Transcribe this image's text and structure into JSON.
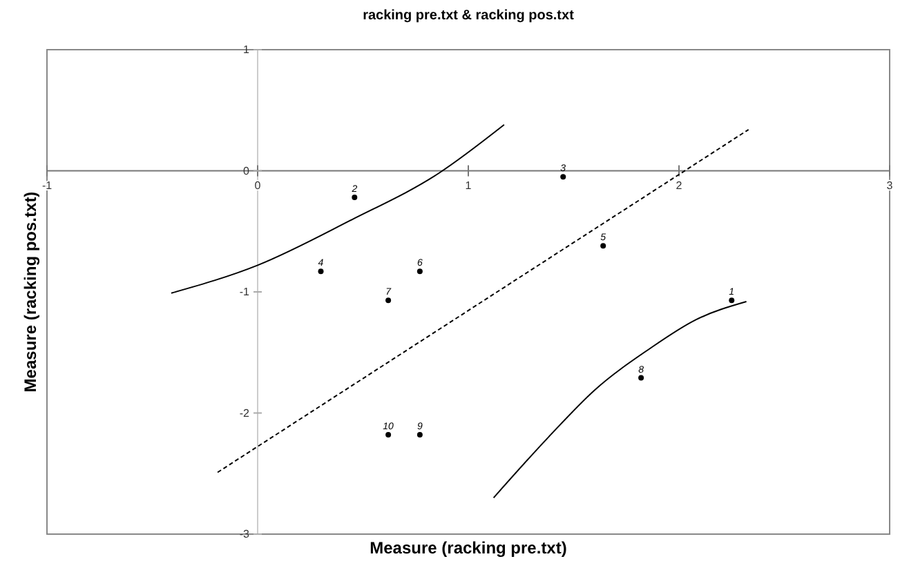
{
  "chart_data": {
    "type": "scatter",
    "title": "racking pre.txt & racking pos.txt",
    "xlabel": "Measure (racking pre.txt)",
    "ylabel": "Measure (racking pos.txt)",
    "xlim": [
      -1,
      3
    ],
    "ylim": [
      -3,
      1
    ],
    "xticks": [
      -1,
      0,
      1,
      2,
      3
    ],
    "yticks": [
      -3,
      -2,
      -1,
      0,
      1
    ],
    "grid": false,
    "annotations": [
      {
        "text": "1",
        "x": 2.25,
        "y": -1.07
      },
      {
        "text": "2",
        "x": 0.46,
        "y": -0.22
      },
      {
        "text": "3",
        "x": 1.45,
        "y": -0.05
      },
      {
        "text": "4",
        "x": 0.3,
        "y": -0.83
      },
      {
        "text": "5",
        "x": 1.64,
        "y": -0.62
      },
      {
        "text": "6",
        "x": 0.77,
        "y": -0.83
      },
      {
        "text": "7",
        "x": 0.62,
        "y": -1.07
      },
      {
        "text": "8",
        "x": 1.82,
        "y": -1.71
      },
      {
        "text": "9",
        "x": 0.77,
        "y": -2.18
      },
      {
        "text": "10",
        "x": 0.62,
        "y": -2.18
      }
    ],
    "series": [
      {
        "color": "#000000",
        "marker": "circle",
        "x": [
          2.25,
          0.46,
          1.45,
          0.3,
          1.64,
          0.77,
          0.62,
          1.82,
          0.77,
          0.62
        ],
        "values": [
          -1.07,
          -0.22,
          -0.05,
          -0.83,
          -0.62,
          -0.83,
          -1.07,
          -1.71,
          -2.18,
          -2.18
        ]
      },
      {
        "type": "line",
        "color": "#000000",
        "line_style": "dashed",
        "x": [
          -0.19,
          2.33
        ],
        "values": [
          -2.49,
          0.34
        ]
      },
      {
        "type": "line",
        "color": "#000000",
        "line_style": "solid",
        "x": [
          -0.41,
          0,
          0.44,
          0.86,
          1.17
        ],
        "values": [
          -1.01,
          -0.78,
          -0.41,
          -0.02,
          0.38
        ]
      },
      {
        "type": "line",
        "color": "#000000",
        "line_style": "solid",
        "x": [
          1.12,
          1.38,
          1.6,
          1.86,
          2.08,
          2.32
        ],
        "values": [
          -2.7,
          -2.2,
          -1.81,
          -1.47,
          -1.23,
          -1.08
        ]
      }
    ]
  }
}
